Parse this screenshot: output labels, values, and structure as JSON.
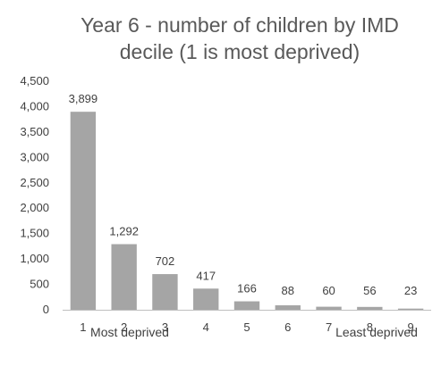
{
  "chart_data": {
    "type": "bar",
    "title_lines": [
      "Year 6 - number of children by IMD",
      "decile (1 is most deprived)"
    ],
    "categories": [
      "1",
      "2",
      "3",
      "4",
      "5",
      "6",
      "7",
      "8",
      "9"
    ],
    "values": [
      3899,
      1292,
      702,
      417,
      166,
      88,
      60,
      56,
      23
    ],
    "data_labels": [
      "3,899",
      "1,292",
      "702",
      "417",
      "166",
      "88",
      "60",
      "56",
      "23"
    ],
    "y_ticks": [
      "0",
      "500",
      "1,000",
      "1,500",
      "2,000",
      "2,500",
      "3,000",
      "3,500",
      "4,000",
      "4,500"
    ],
    "ylim": [
      0,
      4500
    ],
    "grid": false,
    "legend": "none",
    "annotations": {
      "left": "Most deprived",
      "right": "Least deprived"
    },
    "bar_color": "#a5a5a5",
    "axis_color": "#bfbfbf"
  }
}
